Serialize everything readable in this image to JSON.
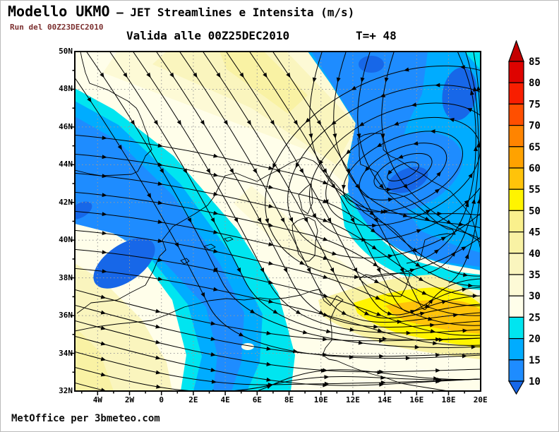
{
  "header": {
    "title_left": "Modello UKMO",
    "title_right": " — JET Streamlines e Intensita (m/s)",
    "run_line": "Run del 00Z23DEC2010",
    "valid_line": "Valida alle 00Z25DEC2010",
    "step_label": "T=+ 48"
  },
  "footer": {
    "credit": "MetOffice per 3bmeteo.com"
  },
  "map": {
    "lat_labels": [
      "50N",
      "48N",
      "46N",
      "44N",
      "42N",
      "40N",
      "38N",
      "36N",
      "34N",
      "32N"
    ],
    "lon_labels": [
      "4W",
      "2W",
      "0",
      "2E",
      "4E",
      "6E",
      "8E",
      "10E",
      "12E",
      "14E",
      "16E",
      "18E",
      "20E"
    ]
  },
  "colorbar": {
    "unit": "m/s",
    "arrow_high_color": "#C40000",
    "arrow_low_color": "#1767E8",
    "segments": [
      {
        "max": 85,
        "color": "#DE0300"
      },
      {
        "max": 80,
        "color": "#F81E00"
      },
      {
        "max": 75,
        "color": "#FF4F00"
      },
      {
        "max": 70,
        "color": "#FF8400"
      },
      {
        "max": 65,
        "color": "#FFA200"
      },
      {
        "max": 60,
        "color": "#FFC30A"
      },
      {
        "max": 55,
        "color": "#FFF400"
      },
      {
        "max": 50,
        "color": "#FAF08C"
      },
      {
        "max": 45,
        "color": "#F9F2A4"
      },
      {
        "max": 40,
        "color": "#FAF5BE"
      },
      {
        "max": 35,
        "color": "#FDFAD6"
      },
      {
        "max": 30,
        "color": "#FFFEEA"
      },
      {
        "max": 25,
        "color": "#00E5F0"
      },
      {
        "max": 20,
        "color": "#00ACFF"
      },
      {
        "max": 15,
        "color": "#1E8CFF"
      }
    ],
    "bottom_label": "10"
  },
  "chart_data": {
    "type": "streamline-map",
    "model": "UKMO",
    "field": "JET Streamlines e Intensita",
    "units": "m/s",
    "run": "00Z23DEC2010",
    "valid": "00Z25DEC2010",
    "forecast_hour": 48,
    "lon_range": [
      "5W",
      "20E"
    ],
    "lat_range": [
      "32N",
      "50N"
    ],
    "grid_step_deg": 2,
    "intensity_scale": [
      10,
      15,
      20,
      25,
      30,
      35,
      40,
      45,
      50,
      55,
      60,
      65,
      70,
      75,
      80,
      85
    ],
    "features": [
      {
        "name": "cyclonic-vortex",
        "location": "~14.5E 44N (Adriatic/central Italy)",
        "intensity_m_s": "10-20"
      },
      {
        "name": "jet-streak-max",
        "location": "~13-17E 36.5-37.5N (Ionian / S Italy)",
        "intensity_m_s": "55-60"
      },
      {
        "name": "weak-flow-band",
        "location": "SW-NE band W Mediterranean (Spain to Gulf of Lion)",
        "intensity_m_s": "10-25"
      },
      {
        "name": "nw-flow-band",
        "location": "diagonal NW flow from France toward S Italy",
        "intensity_m_s": "30-45"
      }
    ]
  }
}
